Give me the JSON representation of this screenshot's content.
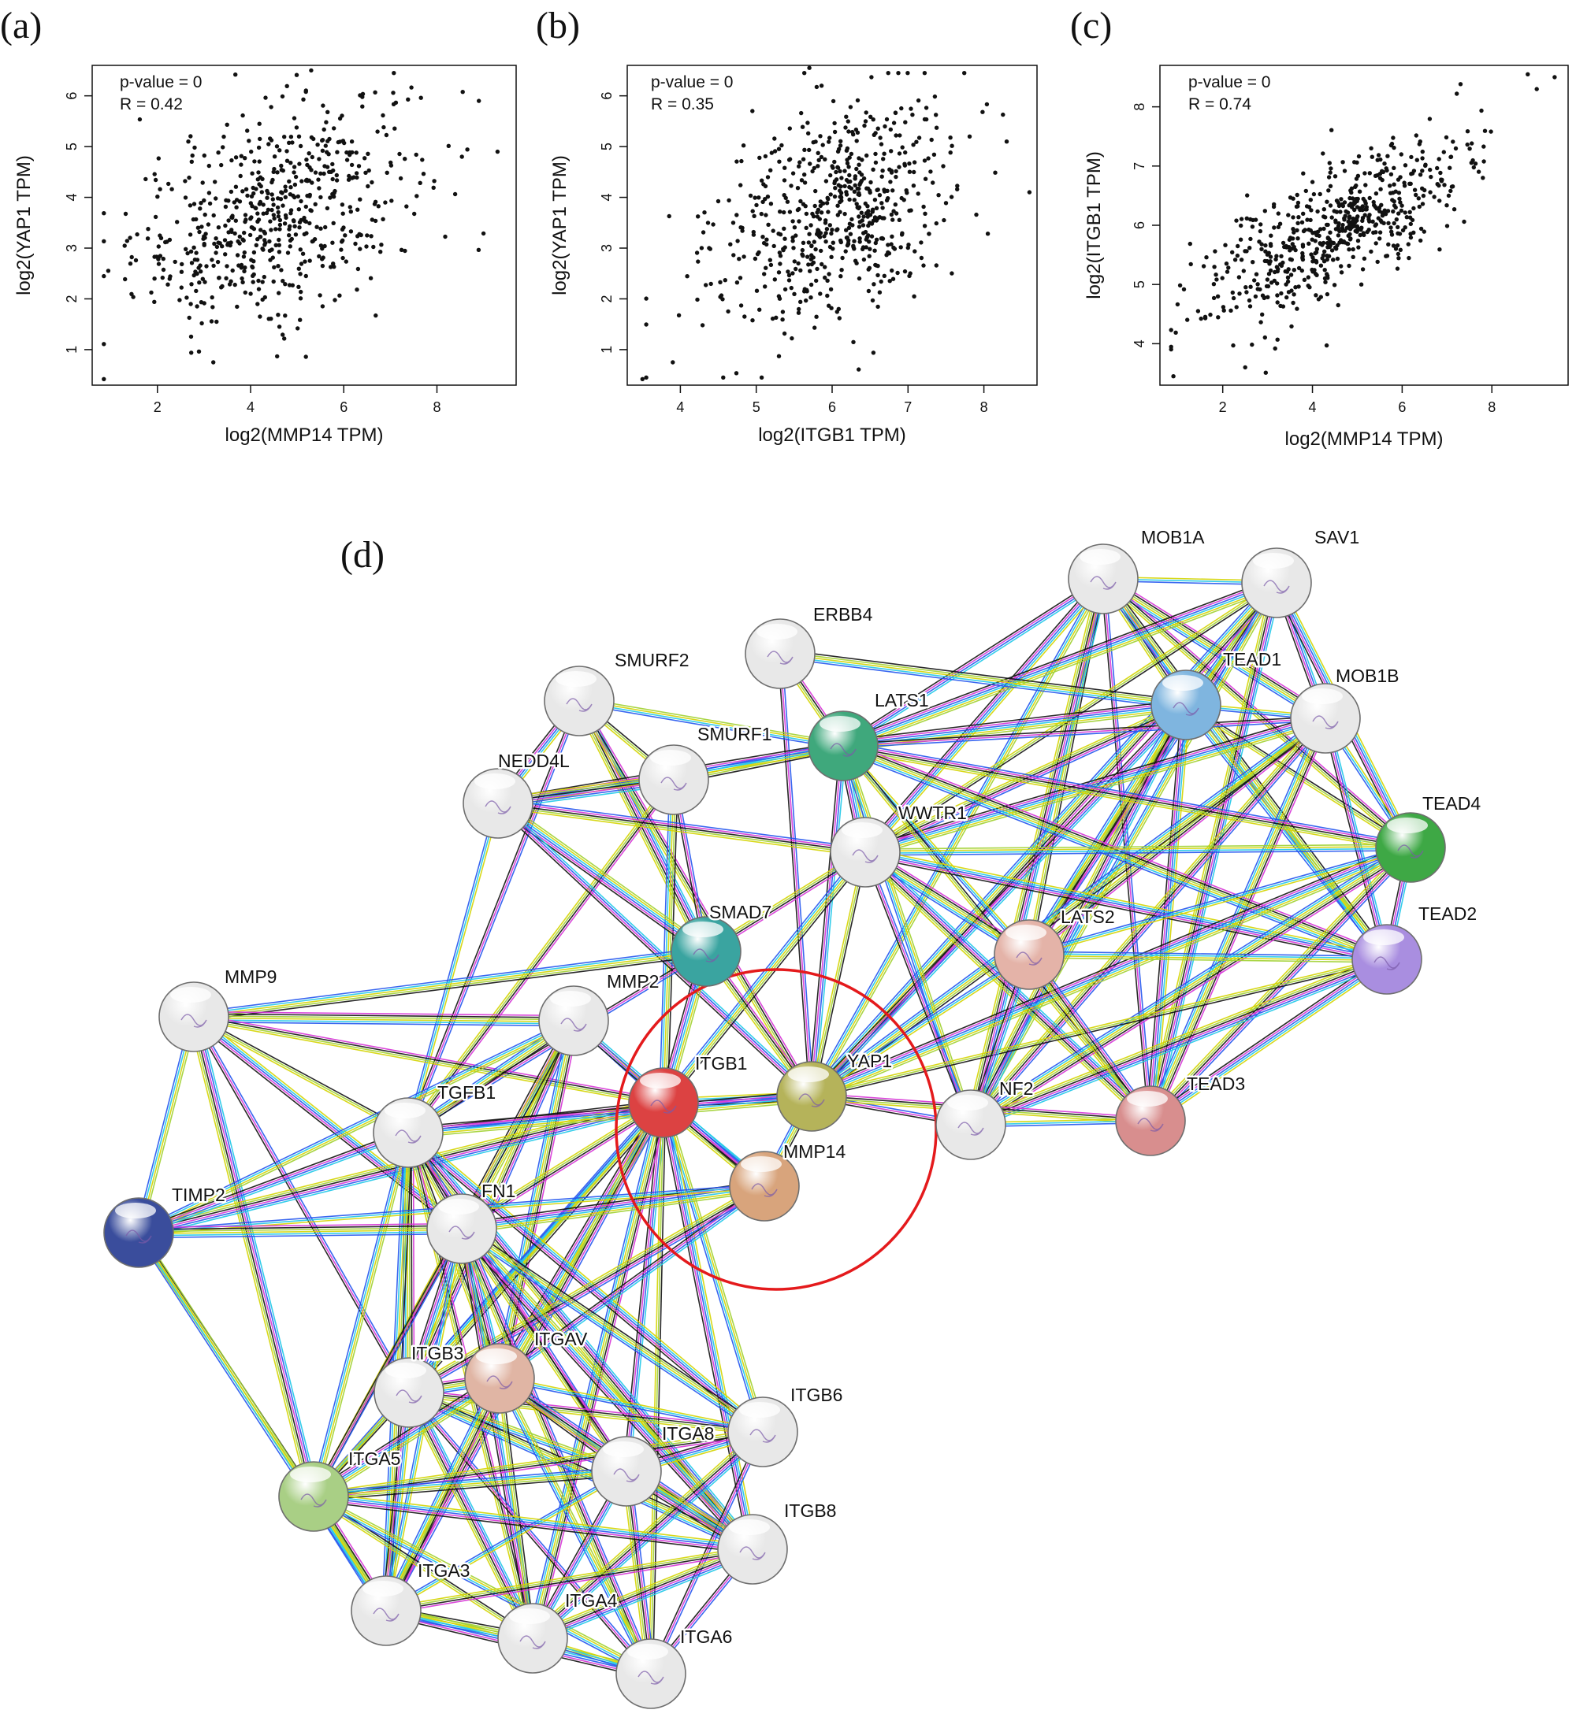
{
  "figure": {
    "panels": [
      {
        "letter": "(a)",
        "xlabel": "log2(MMP14 TPM)",
        "ylabel": "log2(YAP1 TPM)",
        "pvalue": "p-value = 0",
        "r": "R = 0.42"
      },
      {
        "letter": "(b)",
        "xlabel": "log2(ITGB1 TPM)",
        "ylabel": "log2(YAP1 TPM)",
        "pvalue": "p-value = 0",
        "r": "R = 0.35"
      },
      {
        "letter": "(c)",
        "xlabel": "log2(MMP14 TPM)",
        "ylabel": "log2(ITGB1 TPM)",
        "pvalue": "p-value = 0",
        "r": "R = 0.74"
      },
      {
        "letter": "(d)"
      }
    ]
  },
  "chart_data": [
    {
      "type": "scatter",
      "xlabel": "log2(MMP14 TPM)",
      "ylabel": "log2(YAP1 TPM)",
      "annotations": [
        "p-value = 0",
        "R = 0.42"
      ],
      "xlim": [
        0.6,
        9.7
      ],
      "ylim": [
        0.3,
        6.6
      ],
      "xticks": [
        2,
        4,
        6,
        8
      ],
      "yticks": [
        1,
        2,
        3,
        4,
        5,
        6
      ],
      "n_points": 600,
      "r": 0.42,
      "x_mean": 4.5,
      "x_sd": 1.5,
      "y_mean": 3.7,
      "y_sd": 1.1,
      "extreme_points": [
        [
          0.85,
          0.42
        ],
        [
          5.3,
          6.5
        ],
        [
          9.3,
          4.9
        ],
        [
          8.9,
          5.9
        ],
        [
          3.2,
          0.75
        ]
      ]
    },
    {
      "type": "scatter",
      "xlabel": "log2(ITGB1 TPM)",
      "ylabel": "log2(YAP1 TPM)",
      "annotations": [
        "p-value = 0",
        "R = 0.35"
      ],
      "xlim": [
        3.3,
        8.7
      ],
      "ylim": [
        0.3,
        6.6
      ],
      "xticks": [
        4,
        5,
        6,
        7,
        8
      ],
      "yticks": [
        1,
        2,
        3,
        4,
        5,
        6
      ],
      "n_points": 600,
      "r": 0.35,
      "x_mean": 6.0,
      "x_sd": 0.8,
      "y_mean": 3.7,
      "y_sd": 1.1,
      "extreme_points": [
        [
          3.5,
          0.42
        ],
        [
          5.7,
          6.55
        ],
        [
          8.6,
          4.1
        ],
        [
          8.3,
          5.1
        ],
        [
          3.9,
          0.75
        ]
      ]
    },
    {
      "type": "scatter",
      "xlabel": "log2(MMP14 TPM)",
      "ylabel": "log2(ITGB1 TPM)",
      "annotations": [
        "p-value = 0",
        "R = 0.74"
      ],
      "xlim": [
        0.6,
        9.7
      ],
      "ylim": [
        3.3,
        8.7
      ],
      "xticks": [
        2,
        4,
        6,
        8
      ],
      "yticks": [
        4,
        5,
        6,
        7,
        8
      ],
      "n_points": 600,
      "r": 0.74,
      "x_mean": 4.5,
      "x_sd": 1.5,
      "y_mean": 5.9,
      "y_sd": 0.8,
      "extreme_points": [
        [
          0.9,
          3.45
        ],
        [
          9.4,
          8.5
        ],
        [
          8.8,
          8.55
        ],
        [
          9.0,
          8.3
        ],
        [
          2.5,
          3.6
        ]
      ]
    },
    {
      "type": "network",
      "nodes": [
        {
          "id": "MOB1A",
          "color": "#e8e8e8"
        },
        {
          "id": "SAV1",
          "color": "#e8e8e8"
        },
        {
          "id": "ERBB4",
          "color": "#e8e8e8"
        },
        {
          "id": "TEAD1",
          "color": "#7fb5df"
        },
        {
          "id": "MOB1B",
          "color": "#e8e8e8"
        },
        {
          "id": "SMURF2",
          "color": "#e8e8e8"
        },
        {
          "id": "LATS1",
          "color": "#3fa87c"
        },
        {
          "id": "SMURF1",
          "color": "#e8e8e8"
        },
        {
          "id": "NEDD4L",
          "color": "#e8e8e8"
        },
        {
          "id": "WWTR1",
          "color": "#e8e8e8"
        },
        {
          "id": "TEAD4",
          "color": "#3ea845"
        },
        {
          "id": "TEAD2",
          "color": "#a98ee0"
        },
        {
          "id": "SMAD7",
          "color": "#3aa4a0"
        },
        {
          "id": "LATS2",
          "color": "#e4b3a8"
        },
        {
          "id": "MMP9",
          "color": "#e8e8e8"
        },
        {
          "id": "MMP2",
          "color": "#e8e8e8"
        },
        {
          "id": "ITGB1",
          "color": "#dc4242"
        },
        {
          "id": "YAP1",
          "color": "#b5b35a"
        },
        {
          "id": "TEAD3",
          "color": "#d88e8e"
        },
        {
          "id": "NF2",
          "color": "#e8e8e8"
        },
        {
          "id": "TGFB1",
          "color": "#e8e8e8"
        },
        {
          "id": "MMP14",
          "color": "#d8a47c"
        },
        {
          "id": "TIMP2",
          "color": "#3a4d9c"
        },
        {
          "id": "FN1",
          "color": "#e8e8e8"
        },
        {
          "id": "ITGB3",
          "color": "#e8e8e8"
        },
        {
          "id": "ITGAV",
          "color": "#e0b5a4"
        },
        {
          "id": "ITGB6",
          "color": "#e8e8e8"
        },
        {
          "id": "ITGA8",
          "color": "#e8e8e8"
        },
        {
          "id": "ITGA5",
          "color": "#a9cf85"
        },
        {
          "id": "ITGB8",
          "color": "#e8e8e8"
        },
        {
          "id": "ITGA3",
          "color": "#e8e8e8"
        },
        {
          "id": "ITGA4",
          "color": "#e8e8e8"
        },
        {
          "id": "ITGA6",
          "color": "#e8e8e8"
        }
      ],
      "edges": [
        [
          "MOB1A",
          "SAV1"
        ],
        [
          "MOB1A",
          "LATS1"
        ],
        [
          "MOB1A",
          "TEAD1"
        ],
        [
          "MOB1A",
          "MOB1B"
        ],
        [
          "MOB1A",
          "LATS2"
        ],
        [
          "MOB1A",
          "YAP1"
        ],
        [
          "MOB1A",
          "WWTR1"
        ],
        [
          "MOB1A",
          "NF2"
        ],
        [
          "MOB1A",
          "TEAD3"
        ],
        [
          "MOB1A",
          "TEAD4"
        ],
        [
          "MOB1A",
          "TEAD2"
        ],
        [
          "SAV1",
          "LATS1"
        ],
        [
          "SAV1",
          "TEAD1"
        ],
        [
          "SAV1",
          "MOB1B"
        ],
        [
          "SAV1",
          "LATS2"
        ],
        [
          "SAV1",
          "YAP1"
        ],
        [
          "SAV1",
          "WWTR1"
        ],
        [
          "SAV1",
          "NF2"
        ],
        [
          "SAV1",
          "TEAD4"
        ],
        [
          "SAV1",
          "TEAD3"
        ],
        [
          "ERBB4",
          "YAP1"
        ],
        [
          "ERBB4",
          "LATS1"
        ],
        [
          "ERBB4",
          "TEAD1"
        ],
        [
          "TEAD1",
          "LATS1"
        ],
        [
          "TEAD1",
          "MOB1B"
        ],
        [
          "TEAD1",
          "YAP1"
        ],
        [
          "TEAD1",
          "WWTR1"
        ],
        [
          "TEAD1",
          "LATS2"
        ],
        [
          "TEAD1",
          "TEAD4"
        ],
        [
          "TEAD1",
          "TEAD2"
        ],
        [
          "TEAD1",
          "TEAD3"
        ],
        [
          "TEAD1",
          "NF2"
        ],
        [
          "MOB1B",
          "LATS1"
        ],
        [
          "MOB1B",
          "LATS2"
        ],
        [
          "MOB1B",
          "YAP1"
        ],
        [
          "MOB1B",
          "WWTR1"
        ],
        [
          "MOB1B",
          "TEAD4"
        ],
        [
          "MOB1B",
          "TEAD2"
        ],
        [
          "MOB1B",
          "NF2"
        ],
        [
          "MOB1B",
          "TEAD3"
        ],
        [
          "SMURF2",
          "SMURF1"
        ],
        [
          "SMURF2",
          "LATS1"
        ],
        [
          "SMURF2",
          "NEDD4L"
        ],
        [
          "SMURF2",
          "SMAD7"
        ],
        [
          "SMURF2",
          "TGFB1"
        ],
        [
          "SMURF2",
          "YAP1"
        ],
        [
          "LATS1",
          "SMURF1"
        ],
        [
          "LATS1",
          "WWTR1"
        ],
        [
          "LATS1",
          "LATS2"
        ],
        [
          "LATS1",
          "YAP1"
        ],
        [
          "LATS1",
          "TEAD4"
        ],
        [
          "LATS1",
          "TEAD2"
        ],
        [
          "LATS1",
          "TEAD3"
        ],
        [
          "LATS1",
          "NF2"
        ],
        [
          "LATS1",
          "NEDD4L"
        ],
        [
          "SMURF1",
          "NEDD4L"
        ],
        [
          "SMURF1",
          "SMAD7"
        ],
        [
          "SMURF1",
          "TGFB1"
        ],
        [
          "SMURF1",
          "ITGB1"
        ],
        [
          "NEDD4L",
          "SMAD7"
        ],
        [
          "NEDD4L",
          "TGFB1"
        ],
        [
          "NEDD4L",
          "YAP1"
        ],
        [
          "NEDD4L",
          "WWTR1"
        ],
        [
          "WWTR1",
          "LATS2"
        ],
        [
          "WWTR1",
          "YAP1"
        ],
        [
          "WWTR1",
          "TEAD4"
        ],
        [
          "WWTR1",
          "TEAD2"
        ],
        [
          "WWTR1",
          "TEAD3"
        ],
        [
          "WWTR1",
          "NF2"
        ],
        [
          "WWTR1",
          "SMAD7"
        ],
        [
          "WWTR1",
          "ITGB1"
        ],
        [
          "TEAD4",
          "YAP1"
        ],
        [
          "TEAD4",
          "LATS2"
        ],
        [
          "TEAD4",
          "TEAD2"
        ],
        [
          "TEAD4",
          "TEAD3"
        ],
        [
          "TEAD4",
          "NF2"
        ],
        [
          "TEAD2",
          "YAP1"
        ],
        [
          "TEAD2",
          "LATS2"
        ],
        [
          "TEAD2",
          "TEAD3"
        ],
        [
          "TEAD2",
          "NF2"
        ],
        [
          "SMAD7",
          "TGFB1"
        ],
        [
          "SMAD7",
          "YAP1"
        ],
        [
          "SMAD7",
          "MMP9"
        ],
        [
          "SMAD7",
          "ITGB1"
        ],
        [
          "LATS2",
          "YAP1"
        ],
        [
          "LATS2",
          "NF2"
        ],
        [
          "LATS2",
          "TEAD3"
        ],
        [
          "MMP9",
          "MMP2"
        ],
        [
          "MMP9",
          "TGFB1"
        ],
        [
          "MMP9",
          "TIMP2"
        ],
        [
          "MMP9",
          "FN1"
        ],
        [
          "MMP9",
          "ITGA5"
        ],
        [
          "MMP9",
          "ITGB3"
        ],
        [
          "MMP9",
          "ITGB1"
        ],
        [
          "MMP2",
          "TGFB1"
        ],
        [
          "MMP2",
          "FN1"
        ],
        [
          "MMP2",
          "ITGB1"
        ],
        [
          "MMP2",
          "MMP14"
        ],
        [
          "MMP2",
          "ITGB3"
        ],
        [
          "MMP2",
          "ITGAV"
        ],
        [
          "MMP2",
          "ITGA5"
        ],
        [
          "MMP2",
          "TIMP2"
        ],
        [
          "ITGB1",
          "YAP1"
        ],
        [
          "ITGB1",
          "MMP14"
        ],
        [
          "ITGB1",
          "TGFB1"
        ],
        [
          "ITGB1",
          "FN1"
        ],
        [
          "ITGB1",
          "ITGB3"
        ],
        [
          "ITGB1",
          "ITGAV"
        ],
        [
          "ITGB1",
          "ITGA5"
        ],
        [
          "ITGB1",
          "ITGA8"
        ],
        [
          "ITGB1",
          "ITGA3"
        ],
        [
          "ITGB1",
          "ITGA4"
        ],
        [
          "ITGB1",
          "ITGA6"
        ],
        [
          "ITGB1",
          "ITGB6"
        ],
        [
          "ITGB1",
          "ITGB8"
        ],
        [
          "ITGB1",
          "TIMP2"
        ],
        [
          "YAP1",
          "NF2"
        ],
        [
          "YAP1",
          "TEAD3"
        ],
        [
          "YAP1",
          "MMP14"
        ],
        [
          "YAP1",
          "TGFB1"
        ],
        [
          "NF2",
          "TEAD3"
        ],
        [
          "TGFB1",
          "TIMP2"
        ],
        [
          "TGFB1",
          "FN1"
        ],
        [
          "TGFB1",
          "ITGB3"
        ],
        [
          "TGFB1",
          "ITGAV"
        ],
        [
          "TGFB1",
          "ITGA5"
        ],
        [
          "TGFB1",
          "ITGB6"
        ],
        [
          "TGFB1",
          "ITGB8"
        ],
        [
          "TGFB1",
          "ITGA8"
        ],
        [
          "TGFB1",
          "ITGA4"
        ],
        [
          "TGFB1",
          "ITGA3"
        ],
        [
          "MMP14",
          "FN1"
        ],
        [
          "MMP14",
          "TIMP2"
        ],
        [
          "MMP14",
          "ITGAV"
        ],
        [
          "MMP14",
          "ITGB3"
        ],
        [
          "TIMP2",
          "FN1"
        ],
        [
          "TIMP2",
          "ITGA5"
        ],
        [
          "TIMP2",
          "ITGA3"
        ],
        [
          "FN1",
          "ITGB3"
        ],
        [
          "FN1",
          "ITGAV"
        ],
        [
          "FN1",
          "ITGA5"
        ],
        [
          "FN1",
          "ITGA8"
        ],
        [
          "FN1",
          "ITGB6"
        ],
        [
          "FN1",
          "ITGB8"
        ],
        [
          "FN1",
          "ITGA3"
        ],
        [
          "FN1",
          "ITGA4"
        ],
        [
          "FN1",
          "ITGA6"
        ],
        [
          "ITGB3",
          "ITGAV"
        ],
        [
          "ITGB3",
          "ITGA5"
        ],
        [
          "ITGB3",
          "ITGA8"
        ],
        [
          "ITGB3",
          "ITGA3"
        ],
        [
          "ITGB3",
          "ITGA4"
        ],
        [
          "ITGB3",
          "ITGA6"
        ],
        [
          "ITGB3",
          "ITGB6"
        ],
        [
          "ITGB3",
          "ITGB8"
        ],
        [
          "ITGAV",
          "ITGA5"
        ],
        [
          "ITGAV",
          "ITGB6"
        ],
        [
          "ITGAV",
          "ITGA8"
        ],
        [
          "ITGAV",
          "ITGB8"
        ],
        [
          "ITGAV",
          "ITGA3"
        ],
        [
          "ITGAV",
          "ITGA4"
        ],
        [
          "ITGAV",
          "ITGA6"
        ],
        [
          "ITGB6",
          "ITGA8"
        ],
        [
          "ITGB6",
          "ITGA4"
        ],
        [
          "ITGB6",
          "ITGA6"
        ],
        [
          "ITGB6",
          "ITGA5"
        ],
        [
          "ITGA8",
          "ITGA5"
        ],
        [
          "ITGA8",
          "ITGB8"
        ],
        [
          "ITGA8",
          "ITGA3"
        ],
        [
          "ITGA8",
          "ITGA4"
        ],
        [
          "ITGA8",
          "ITGA6"
        ],
        [
          "ITGA5",
          "ITGA3"
        ],
        [
          "ITGA5",
          "ITGA4"
        ],
        [
          "ITGA5",
          "ITGA6"
        ],
        [
          "ITGA5",
          "ITGB8"
        ],
        [
          "ITGB8",
          "ITGA4"
        ],
        [
          "ITGB8",
          "ITGA6"
        ],
        [
          "ITGB8",
          "ITGA3"
        ],
        [
          "ITGA3",
          "ITGA4"
        ],
        [
          "ITGA3",
          "ITGA6"
        ],
        [
          "ITGA4",
          "ITGA6"
        ]
      ],
      "edge_colors": [
        "#d4d400",
        "#1ec8e8",
        "#2255ee",
        "#d633d6",
        "#111111",
        "#a0d030"
      ],
      "highlight": {
        "shape": "circle",
        "color": "#e41a1c",
        "nodes": [
          "ITGB1",
          "YAP1",
          "MMP14"
        ]
      }
    }
  ]
}
